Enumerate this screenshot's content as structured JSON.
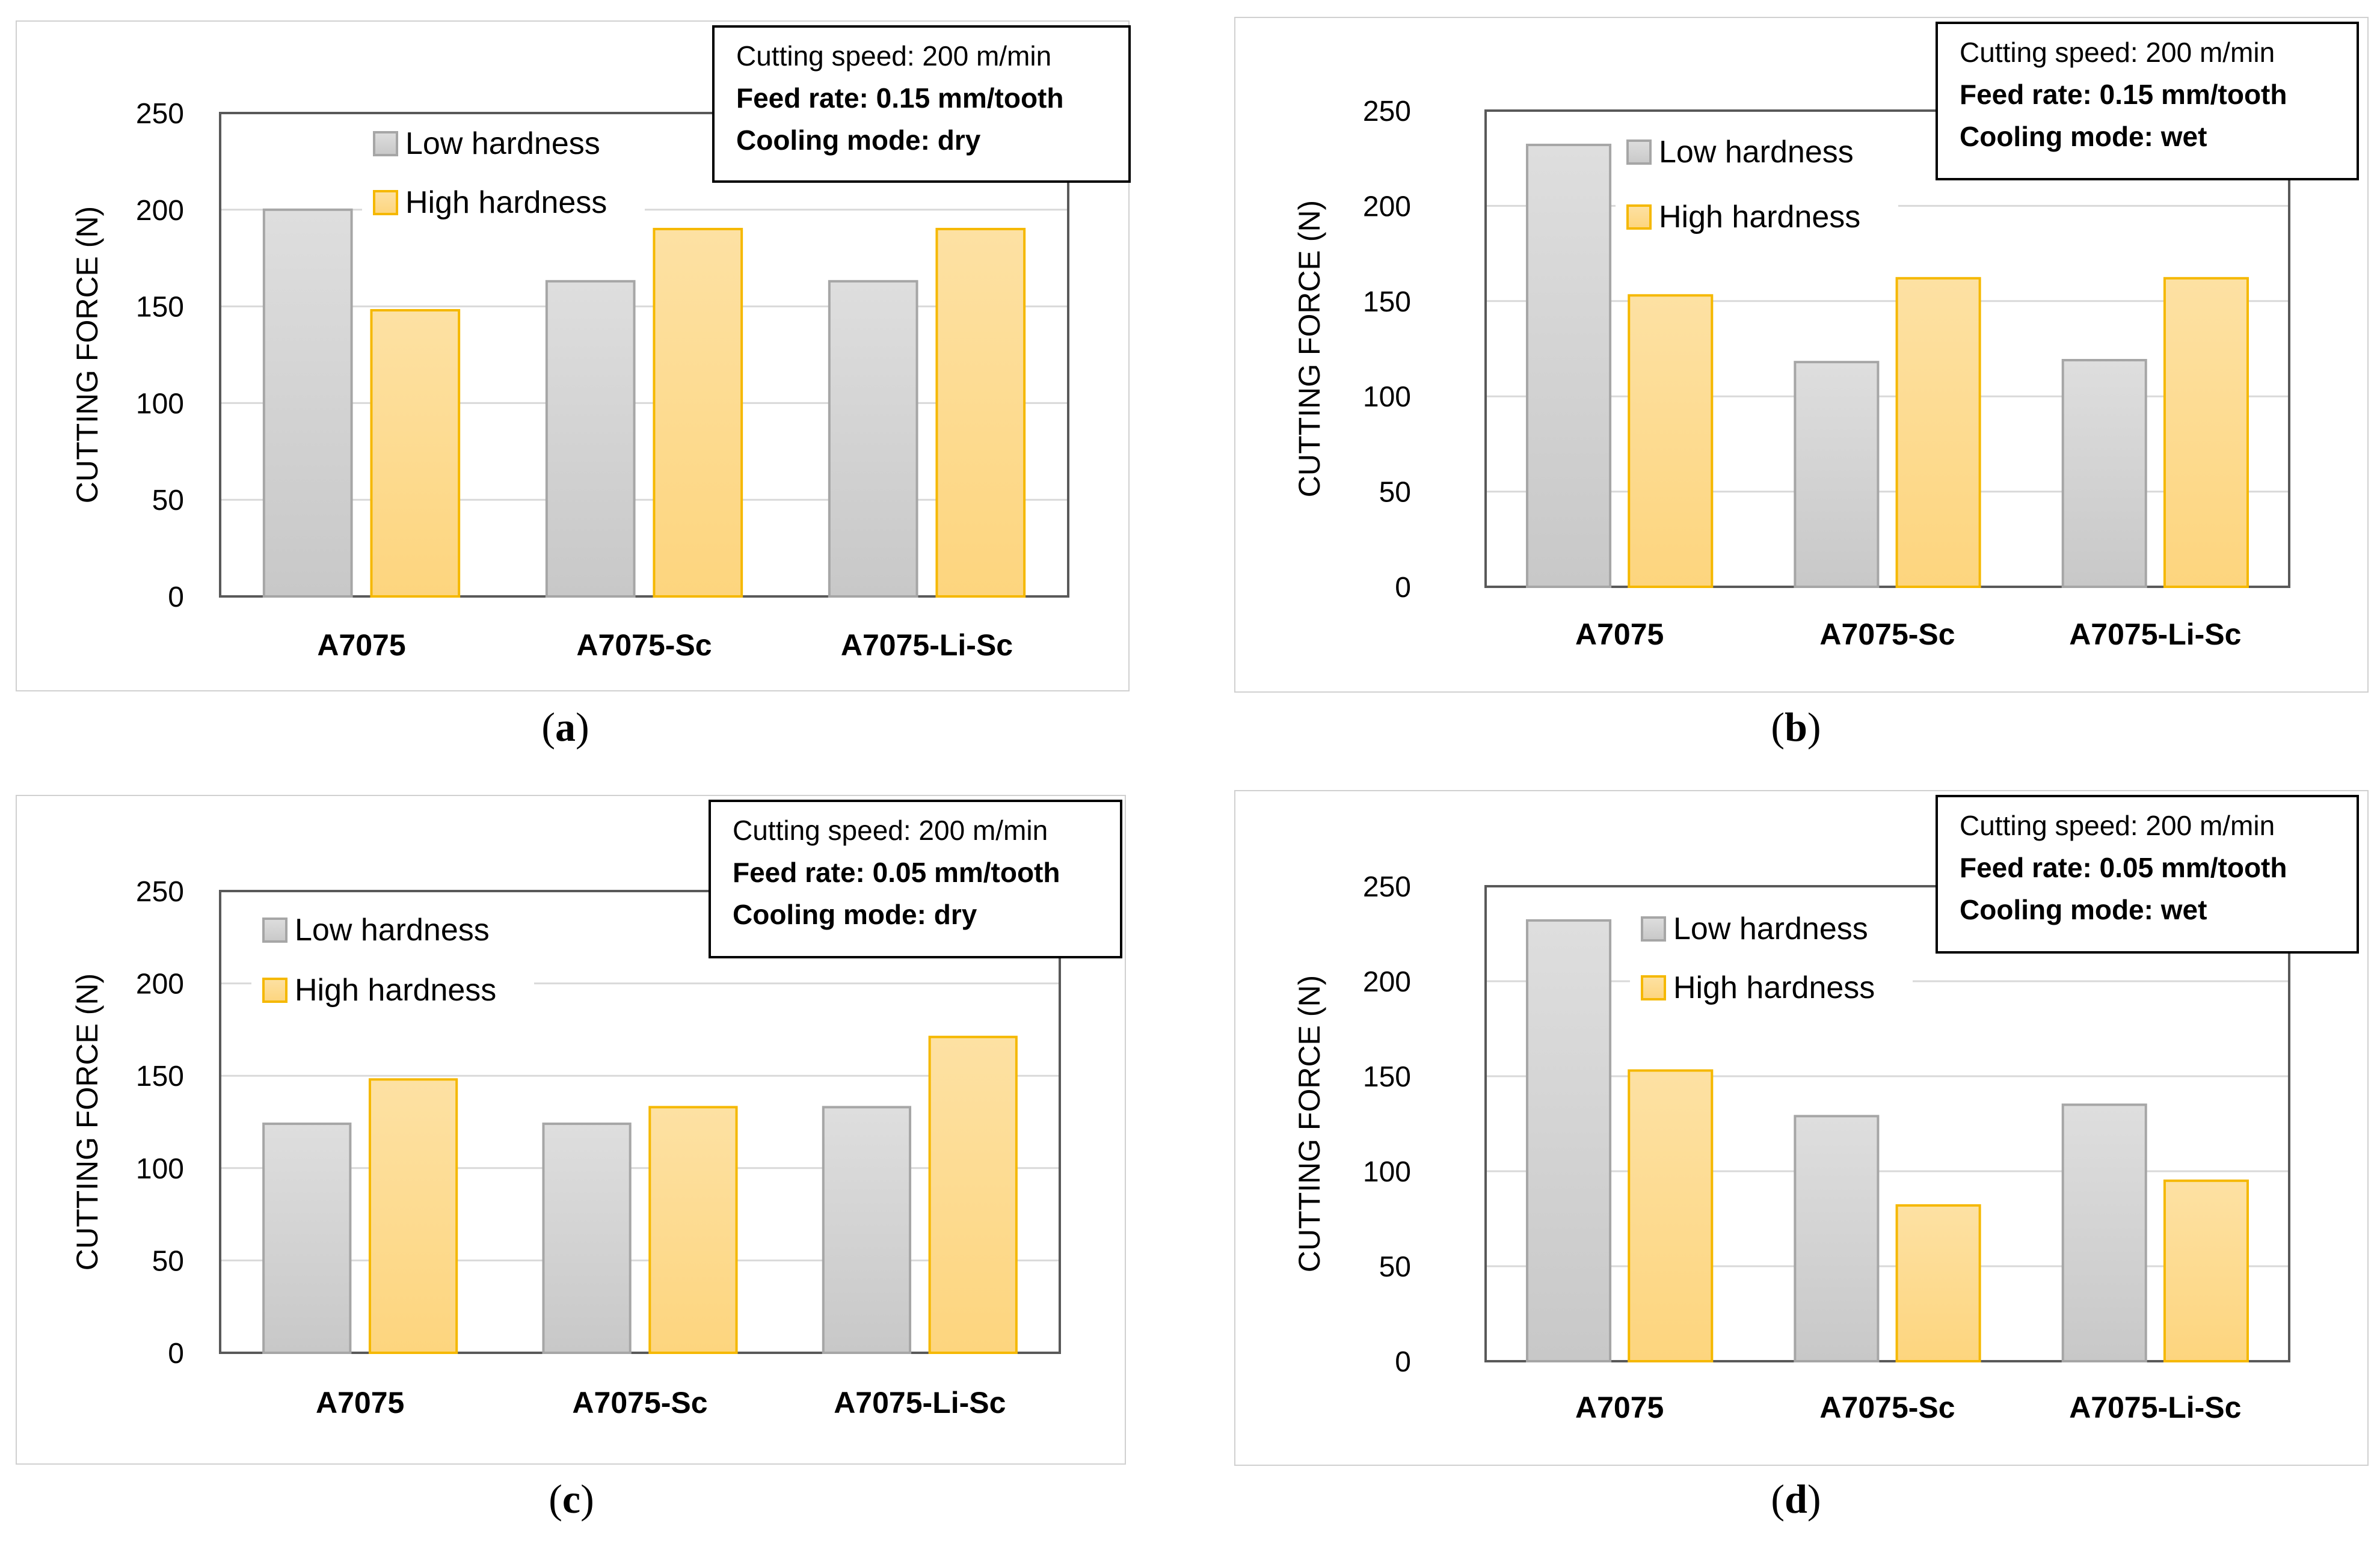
{
  "legend": {
    "low_label": "Low hardness",
    "high_label": "High hardness",
    "low_color": "#c8c8c8",
    "high_color": "#fdd57e",
    "low_border": "#a6a6a6",
    "high_border": "#f5b800"
  },
  "axis": {
    "ylabel": "CUTTING FORCE (N)"
  },
  "panels": [
    {
      "id": "a",
      "caption_letter": "a",
      "info": {
        "speed": "Cutting speed: 200 m/min",
        "feed": "Feed rate: 0.15 mm/tooth",
        "cooling": "Cooling mode: dry"
      }
    },
    {
      "id": "b",
      "caption_letter": "b",
      "info": {
        "speed": "Cutting speed: 200 m/min",
        "feed": "Feed rate: 0.15 mm/tooth",
        "cooling": "Cooling mode: wet"
      }
    },
    {
      "id": "c",
      "caption_letter": "c",
      "info": {
        "speed": "Cutting speed: 200 m/min",
        "feed": "Feed rate: 0.05 mm/tooth",
        "cooling": "Cooling mode: dry"
      }
    },
    {
      "id": "d",
      "caption_letter": "d",
      "info": {
        "speed": "Cutting speed: 200 m/min",
        "feed": "Feed rate: 0.05 mm/tooth",
        "cooling": "Cooling mode: wet"
      }
    }
  ],
  "chart_data": [
    {
      "type": "bar",
      "categories": [
        "A7075",
        "A7075-Sc",
        "A7075-Li-Sc"
      ],
      "series": [
        {
          "name": "Low hardness",
          "values": [
            200,
            163,
            163
          ]
        },
        {
          "name": "High hardness",
          "values": [
            148,
            190,
            190
          ]
        }
      ],
      "ylabel": "CUTTING FORCE (N)",
      "ylim": [
        0,
        250
      ],
      "yticks": [
        0,
        50,
        100,
        150,
        200,
        250
      ],
      "grid": true,
      "legend": "top-left"
    },
    {
      "type": "bar",
      "categories": [
        "A7075",
        "A7075-Sc",
        "A7075-Li-Sc"
      ],
      "series": [
        {
          "name": "Low hardness",
          "values": [
            232,
            118,
            119
          ]
        },
        {
          "name": "High hardness",
          "values": [
            153,
            162,
            162
          ]
        }
      ],
      "ylabel": "CUTTING FORCE (N)",
      "ylim": [
        0,
        250
      ],
      "yticks": [
        0,
        50,
        100,
        150,
        200,
        250
      ],
      "grid": true,
      "legend": "top-center"
    },
    {
      "type": "bar",
      "categories": [
        "A7075",
        "A7075-Sc",
        "A7075-Li-Sc"
      ],
      "series": [
        {
          "name": "Low hardness",
          "values": [
            124,
            124,
            133
          ]
        },
        {
          "name": "High hardness",
          "values": [
            148,
            133,
            171
          ]
        }
      ],
      "ylabel": "CUTTING FORCE (N)",
      "ylim": [
        0,
        250
      ],
      "yticks": [
        0,
        50,
        100,
        150,
        200,
        250
      ],
      "grid": true,
      "legend": "top-left"
    },
    {
      "type": "bar",
      "categories": [
        "A7075",
        "A7075-Sc",
        "A7075-Li-Sc"
      ],
      "series": [
        {
          "name": "Low hardness",
          "values": [
            232,
            129,
            135
          ]
        },
        {
          "name": "High hardness",
          "values": [
            153,
            82,
            95
          ]
        }
      ],
      "ylabel": "CUTTING FORCE (N)",
      "ylim": [
        0,
        250
      ],
      "yticks": [
        0,
        50,
        100,
        150,
        200,
        250
      ],
      "grid": true,
      "legend": "top-center"
    }
  ]
}
